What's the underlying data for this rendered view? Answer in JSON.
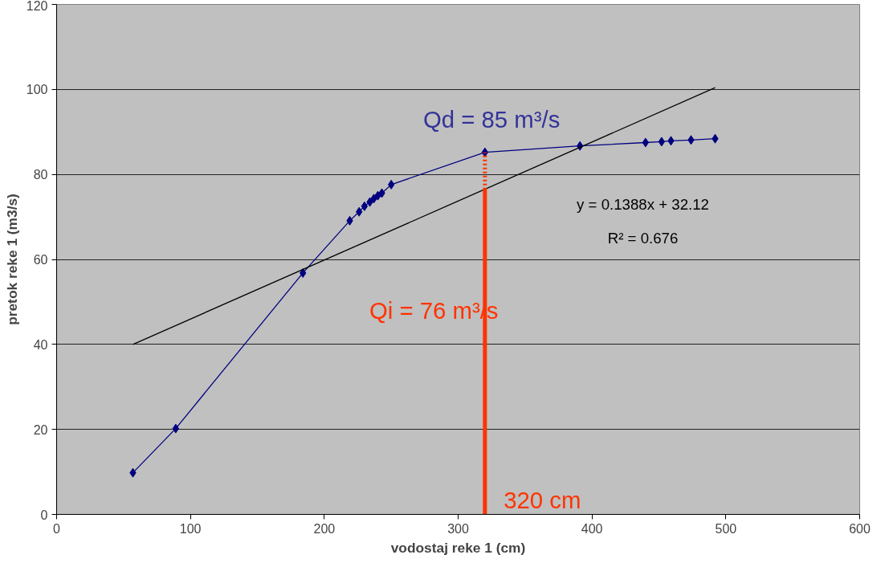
{
  "chart_data": {
    "type": "line",
    "xlabel": "vodostaj reke 1 (cm)",
    "ylabel": "pretok reke 1 (m3/s)",
    "xlim": [
      0,
      600
    ],
    "xticks": [
      0,
      100,
      200,
      300,
      400,
      500,
      600
    ],
    "ylim": [
      0,
      120
    ],
    "yticks": [
      0,
      20,
      40,
      60,
      80,
      100,
      120
    ],
    "grid": "y",
    "series": [
      {
        "marker": "diamond",
        "color": "#000080",
        "x": [
          57,
          89,
          184,
          219,
          226,
          230,
          234,
          237,
          240,
          243,
          250,
          320,
          391,
          440,
          452,
          459,
          474,
          492
        ],
        "values": [
          9.8,
          20.2,
          56.8,
          69.1,
          71.2,
          72.5,
          73.5,
          74.3,
          75.0,
          75.6,
          77.6,
          85.2,
          86.7,
          87.5,
          87.7,
          87.9,
          88.1,
          88.4
        ]
      },
      {
        "marker": "none",
        "color": "#000000",
        "x": [
          57,
          492
        ],
        "values": [
          40.0,
          100.4
        ]
      },
      {
        "marker": "none",
        "color": "#ff3300",
        "x": [
          320,
          320
        ],
        "values": [
          0,
          76.5
        ]
      },
      {
        "marker": "none",
        "line_style": "dotted",
        "color": "#ff3300",
        "x": [
          320,
          320
        ],
        "values": [
          76.5,
          85.2
        ]
      }
    ],
    "annotations": [
      "Qd = 85 m³/s",
      "Qi = 76 m³/s",
      "320 cm",
      "y = 0.1388x + 32.12",
      "R² = 0.676"
    ]
  }
}
